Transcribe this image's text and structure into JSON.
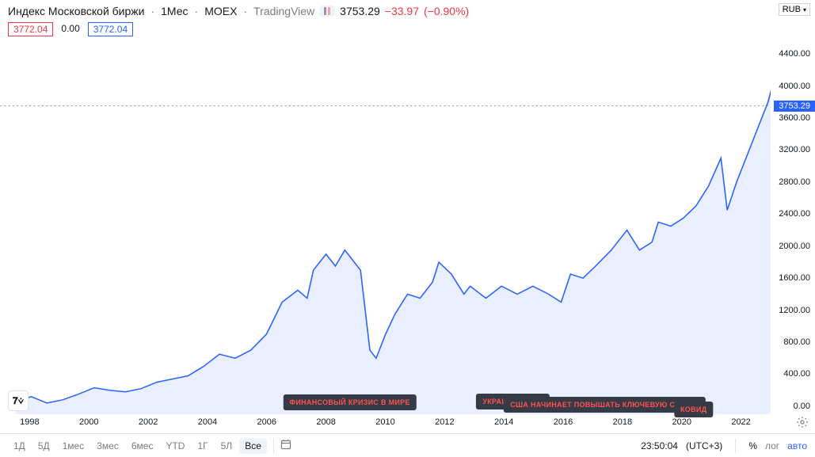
{
  "header": {
    "title": "Индекс Московской биржи",
    "interval": "1Мес",
    "ticker": "MOEX",
    "platform": "TradingView",
    "price": "3753.29",
    "change_abs": "−33.97",
    "change_pct": "(−0.90%)",
    "change_color": "#f23645",
    "candle_bar1": "#9598a1",
    "candle_bar2": "#ff9ea3"
  },
  "ohlc": {
    "open": "3772.04",
    "open_color": "#f23645",
    "mid": "0.00",
    "close": "3772.04",
    "close_color": "#2962ff"
  },
  "currency": "RUB",
  "chart": {
    "type": "area",
    "line_color": "#2962ff",
    "fill_color": "rgba(41,98,255,0.10)",
    "line_width": 1.5,
    "background": "#ffffff",
    "current_line_color": "#9598a1",
    "x_range": [
      1997,
      2023
    ],
    "y_range": [
      -100,
      4600
    ],
    "y_ticks": [
      0,
      400,
      800,
      1200,
      1600,
      2000,
      2400,
      2800,
      3200,
      3600,
      4000,
      4400
    ],
    "y_tick_labels": [
      "0.00",
      "400.00",
      "800.00",
      "1200.00",
      "1600.00",
      "2000.00",
      "2400.00",
      "2800.00",
      "3200.00",
      "3600.00",
      "4000.00",
      "4400.00"
    ],
    "current_value": 3753.29,
    "current_label": "3753.29",
    "x_ticks": [
      1998,
      2000,
      2002,
      2004,
      2006,
      2008,
      2010,
      2012,
      2014,
      2016,
      2018,
      2020,
      2022
    ],
    "data": [
      [
        1997.5,
        60
      ],
      [
        1998.0,
        120
      ],
      [
        1998.5,
        40
      ],
      [
        1999.0,
        80
      ],
      [
        1999.5,
        150
      ],
      [
        2000.0,
        230
      ],
      [
        2000.5,
        200
      ],
      [
        2001.0,
        180
      ],
      [
        2001.5,
        220
      ],
      [
        2002.0,
        300
      ],
      [
        2002.5,
        340
      ],
      [
        2003.0,
        380
      ],
      [
        2003.5,
        500
      ],
      [
        2004.0,
        650
      ],
      [
        2004.5,
        600
      ],
      [
        2005.0,
        700
      ],
      [
        2005.5,
        900
      ],
      [
        2006.0,
        1300
      ],
      [
        2006.5,
        1450
      ],
      [
        2006.8,
        1350
      ],
      [
        2007.0,
        1700
      ],
      [
        2007.4,
        1900
      ],
      [
        2007.7,
        1750
      ],
      [
        2008.0,
        1950
      ],
      [
        2008.3,
        1800
      ],
      [
        2008.5,
        1700
      ],
      [
        2008.8,
        700
      ],
      [
        2009.0,
        600
      ],
      [
        2009.3,
        900
      ],
      [
        2009.6,
        1150
      ],
      [
        2010.0,
        1400
      ],
      [
        2010.4,
        1350
      ],
      [
        2010.8,
        1550
      ],
      [
        2011.0,
        1800
      ],
      [
        2011.4,
        1650
      ],
      [
        2011.8,
        1400
      ],
      [
        2012.0,
        1500
      ],
      [
        2012.5,
        1350
      ],
      [
        2013.0,
        1500
      ],
      [
        2013.5,
        1400
      ],
      [
        2014.0,
        1500
      ],
      [
        2014.5,
        1400
      ],
      [
        2014.9,
        1300
      ],
      [
        2015.2,
        1650
      ],
      [
        2015.6,
        1600
      ],
      [
        2016.0,
        1750
      ],
      [
        2016.5,
        1950
      ],
      [
        2017.0,
        2200
      ],
      [
        2017.4,
        1950
      ],
      [
        2017.8,
        2050
      ],
      [
        2018.0,
        2300
      ],
      [
        2018.4,
        2250
      ],
      [
        2018.8,
        2350
      ],
      [
        2019.2,
        2500
      ],
      [
        2019.6,
        2750
      ],
      [
        2020.0,
        3100
      ],
      [
        2020.2,
        2450
      ],
      [
        2020.5,
        2800
      ],
      [
        2020.9,
        3200
      ],
      [
        2021.2,
        3500
      ],
      [
        2021.5,
        3800
      ],
      [
        2021.8,
        4250
      ],
      [
        2022.0,
        3753
      ]
    ]
  },
  "annotations": [
    {
      "x": 2008.8,
      "y_top": 150,
      "y_tip": 700,
      "label": "ФИНАНСОВЫЙ КРИЗИС В МИРЕ"
    },
    {
      "x": 2014.3,
      "y_top": 160,
      "y_tip": 1400,
      "label": "УКРАИНА КРЫМ"
    },
    {
      "x": 2017.4,
      "y_top": 120,
      "y_tip": 2000,
      "label": "США НАЧИНАЕТ ПОВЫШАТЬ КЛЮЧЕВУЮ СТАВКУ"
    },
    {
      "x": 2020.4,
      "y_top": 60,
      "y_tip": 2550,
      "label": "КОВИД"
    }
  ],
  "ranges": {
    "items": [
      "1Д",
      "5Д",
      "1мес",
      "3мес",
      "6мес",
      "YTD",
      "1Г",
      "5Л",
      "Все"
    ],
    "active": "Все"
  },
  "footer": {
    "time": "23:50:04",
    "tz": "(UTC+3)",
    "pct": "%",
    "log": "лог",
    "auto": "авто"
  },
  "logo": "𝟕⩒"
}
